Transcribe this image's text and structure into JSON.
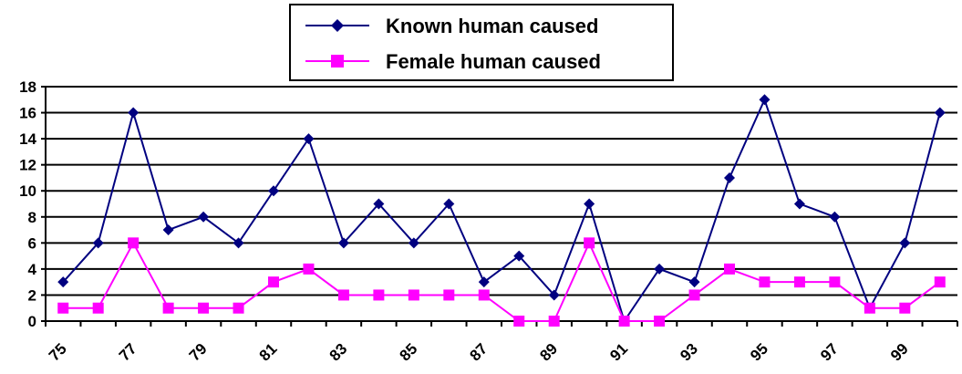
{
  "chart_data": {
    "type": "line",
    "title": "",
    "xlabel": "",
    "ylabel": "",
    "x": [
      75,
      76,
      77,
      78,
      79,
      80,
      81,
      82,
      83,
      84,
      85,
      86,
      87,
      88,
      89,
      90,
      91,
      92,
      93,
      94,
      95,
      96,
      97,
      98,
      99,
      100
    ],
    "x_tick_labels": [
      "75",
      "77",
      "79",
      "81",
      "83",
      "85",
      "87",
      "89",
      "91",
      "93",
      "95",
      "97",
      "99"
    ],
    "y_tick_labels": [
      "0",
      "2",
      "4",
      "6",
      "8",
      "10",
      "12",
      "14",
      "16",
      "18"
    ],
    "ylim": [
      0,
      18
    ],
    "y_ticks": [
      0,
      2,
      4,
      6,
      8,
      10,
      12,
      14,
      16,
      18
    ],
    "grid": "horizontal",
    "legend_position": "top-center",
    "series": [
      {
        "name": "Known human caused",
        "color": "#000080",
        "marker": "diamond",
        "values": [
          3,
          6,
          16,
          7,
          8,
          6,
          10,
          14,
          6,
          9,
          6,
          9,
          3,
          5,
          2,
          9,
          0,
          4,
          3,
          11,
          17,
          9,
          8,
          1,
          6,
          16
        ]
      },
      {
        "name": "Female human caused",
        "color": "#FF00FF",
        "marker": "square",
        "values": [
          1,
          1,
          6,
          1,
          1,
          1,
          3,
          4,
          2,
          2,
          2,
          2,
          2,
          0,
          0,
          6,
          0,
          0,
          2,
          4,
          3,
          3,
          3,
          1,
          1,
          3
        ]
      }
    ]
  }
}
